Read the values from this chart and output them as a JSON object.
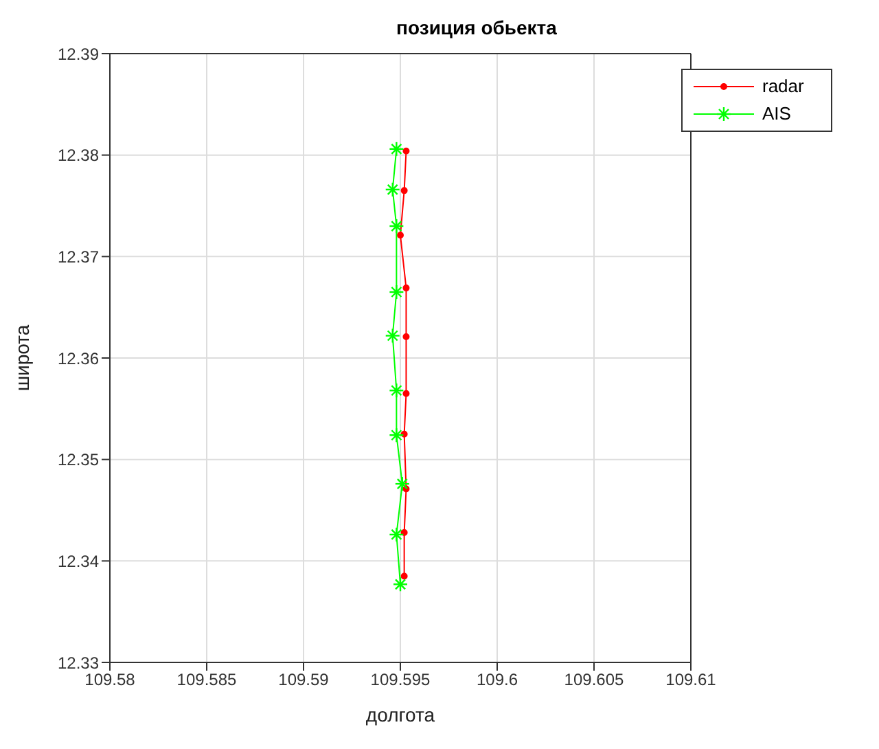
{
  "chart_data": {
    "type": "line",
    "title": "позиция обьекта",
    "xlabel": "долгота",
    "ylabel": "широта",
    "xlim": [
      109.58,
      109.61
    ],
    "xticks": [
      109.58,
      109.585,
      109.59,
      109.595,
      109.6,
      109.605,
      109.61
    ],
    "ylim": [
      12.33,
      12.39
    ],
    "yticks": [
      12.33,
      12.34,
      12.35,
      12.36,
      12.37,
      12.38,
      12.39
    ],
    "grid": true,
    "legend": "top right",
    "series": [
      {
        "name": "radar",
        "color": "#ff0000",
        "marker": "circle",
        "x": [
          109.5953,
          109.5952,
          109.595,
          109.5953,
          109.5953,
          109.5953,
          109.5952,
          109.5953,
          109.5952,
          109.5952
        ],
        "values": [
          12.3804,
          12.3765,
          12.3721,
          12.3669,
          12.3621,
          12.3565,
          12.3525,
          12.3471,
          12.3428,
          12.3385
        ]
      },
      {
        "name": "AIS",
        "color": "#00ff00",
        "marker": "cross",
        "x": [
          109.5948,
          109.5946,
          109.5948,
          109.5948,
          109.5946,
          109.5948,
          109.5948,
          109.5951,
          109.5948,
          109.595
        ],
        "values": [
          12.3806,
          12.3766,
          12.373,
          12.3665,
          12.3622,
          12.3568,
          12.3524,
          12.3476,
          12.3426,
          12.3377
        ]
      }
    ]
  }
}
